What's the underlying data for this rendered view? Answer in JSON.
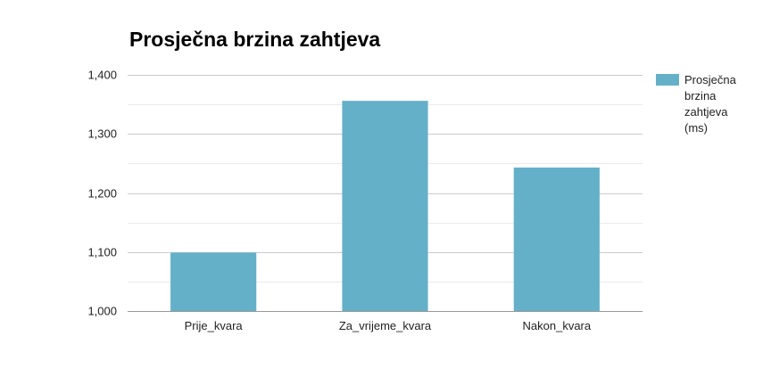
{
  "chart_data": {
    "type": "bar",
    "title": "Prosječna brzina zahtjeva",
    "categories": [
      "Prije_kvara",
      "Za_vrijeme_kvara",
      "Nakon_kvara"
    ],
    "series": [
      {
        "name": "Prosječna brzina zahtjeva (ms)",
        "values": [
          1099,
          1356,
          1243
        ]
      }
    ],
    "y_ticks": [
      "1,000",
      "1,100",
      "1,200",
      "1,300",
      "1,400"
    ],
    "ylim": [
      1000,
      1400
    ],
    "minor_gridlines": true,
    "legend_position": "right",
    "colors": {
      "bar": "#64b0c8",
      "major_grid": "#cccccc",
      "minor_grid": "#ebebeb",
      "axis": "#999999"
    }
  }
}
